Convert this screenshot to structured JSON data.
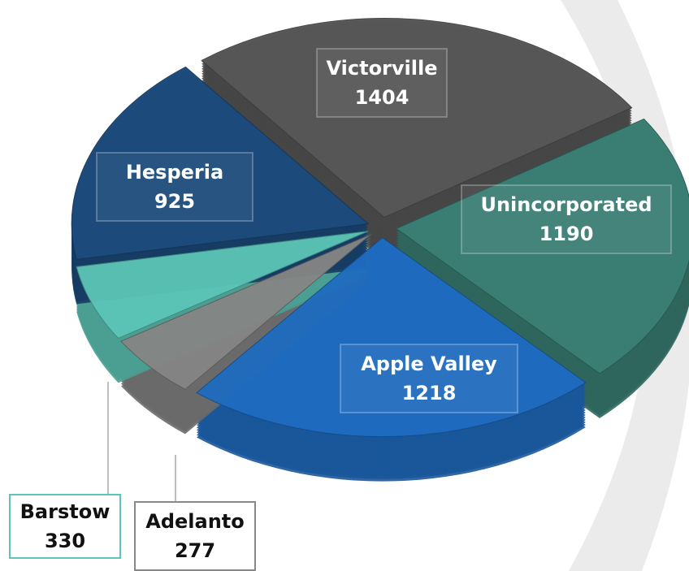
{
  "chart_data": {
    "type": "pie3d",
    "categories": [
      "Victorville",
      "Unincorporated",
      "Apple Valley",
      "Adelanto",
      "Barstow",
      "Hesperia"
    ],
    "values": [
      1404,
      1190,
      1218,
      277,
      330,
      925
    ],
    "colors": [
      "#575757",
      "#3b7f74",
      "#1f6cc0",
      "#858585",
      "#5cc5b7",
      "#1c4b7d"
    ]
  }
}
